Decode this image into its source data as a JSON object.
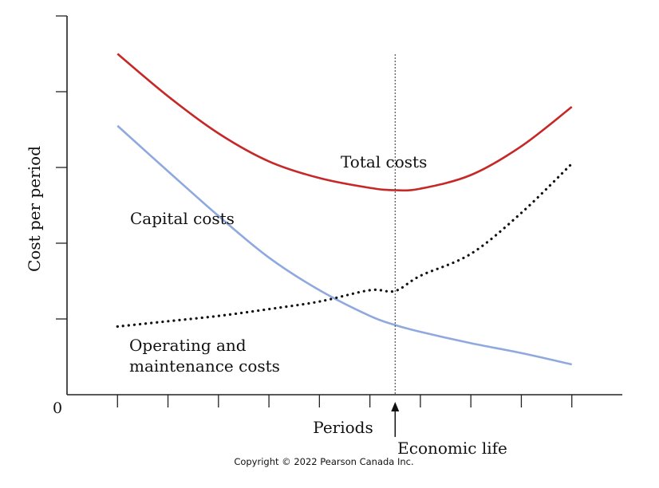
{
  "chart_data": {
    "type": "line",
    "xlabel": "Periods",
    "ylabel": "Cost per period",
    "origin_label": "0",
    "xlim": [
      0,
      11
    ],
    "ylim": [
      0,
      5
    ],
    "x_ticks": [
      1,
      2,
      3,
      4,
      5,
      6,
      7,
      8,
      9,
      10
    ],
    "y_ticks": [
      1,
      2,
      3,
      4,
      5
    ],
    "grid": false,
    "series": [
      {
        "name": "Total costs",
        "color": "#c62828",
        "style": "solid",
        "x": [
          1,
          2,
          3,
          4,
          5,
          6,
          6.5,
          7,
          8,
          9,
          10
        ],
        "y": [
          4.5,
          3.94,
          3.45,
          3.08,
          2.86,
          2.73,
          2.7,
          2.72,
          2.9,
          3.28,
          3.8
        ]
      },
      {
        "name": "Capital costs",
        "color": "#8fa9df",
        "style": "solid",
        "x": [
          1,
          2,
          3,
          4,
          5,
          6,
          6.5,
          7,
          8,
          9,
          10
        ],
        "y": [
          3.55,
          2.95,
          2.36,
          1.81,
          1.38,
          1.04,
          0.92,
          0.83,
          0.68,
          0.55,
          0.4
        ]
      },
      {
        "name": "Operating and maintenance costs",
        "color": "#111111",
        "style": "dotted",
        "x": [
          1,
          2,
          3,
          4,
          5,
          6,
          6.5,
          7,
          8,
          9,
          10
        ],
        "y": [
          0.9,
          0.97,
          1.04,
          1.13,
          1.23,
          1.38,
          1.37,
          1.57,
          1.86,
          2.4,
          3.05
        ]
      }
    ],
    "annotations": {
      "total_label": "Total costs",
      "capital_label": "Capital costs",
      "om_label_line1": "Operating and",
      "om_label_line2": "maintenance costs",
      "economic_life_label": "Economic life",
      "economic_life_x": 6.5
    }
  },
  "copyright": "Copyright © 2022 Pearson Canada Inc."
}
